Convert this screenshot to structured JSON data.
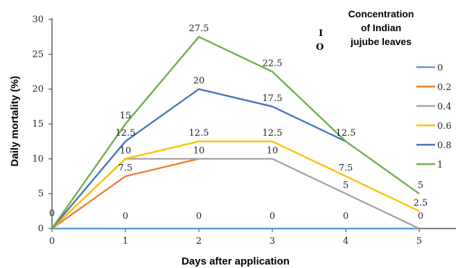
{
  "chart_data": {
    "type": "line",
    "x": [
      0,
      1,
      2,
      3,
      4,
      5
    ],
    "xlabel": "Days after application",
    "ylabel": "Daily mortality (%)",
    "ylim": [
      0,
      30
    ],
    "xlim": [
      0,
      5
    ],
    "yticks": [
      0,
      5,
      10,
      15,
      20,
      25,
      30
    ],
    "grid": false,
    "legend_title_lines": [
      "Concentration",
      "of Indian",
      "jujube leaves"
    ],
    "legend_position": "right",
    "stray_text": [
      "I",
      "O"
    ],
    "series": [
      {
        "name": "0",
        "color": "#5b9bd5",
        "values": [
          0,
          0,
          0,
          0,
          0,
          0
        ],
        "labels": [
          "0",
          "0",
          "0",
          "0",
          "0",
          "0"
        ]
      },
      {
        "name": "0.2",
        "color": "#ed7d31",
        "values": [
          0,
          7.5,
          10,
          null,
          null,
          null
        ],
        "labels": [
          "",
          "7.5",
          "",
          "",
          "",
          ""
        ]
      },
      {
        "name": "0.4",
        "color": "#a5a5a5",
        "values": [
          0,
          10,
          10,
          10,
          5,
          0
        ],
        "labels": [
          "",
          "10",
          "10",
          "10",
          "5",
          ""
        ]
      },
      {
        "name": "0.6",
        "color": "#ffc000",
        "values": [
          0,
          10,
          12.5,
          12.5,
          7.5,
          2.5
        ],
        "labels": [
          "",
          "",
          "12.5",
          "12.5",
          "7.5",
          "2.5"
        ]
      },
      {
        "name": "0.8",
        "color": "#4472c4",
        "values": [
          0,
          12.5,
          20,
          17.5,
          12.5,
          null
        ],
        "labels": [
          "",
          "12.5",
          "20",
          "17.5",
          "12.5",
          ""
        ]
      },
      {
        "name": "1",
        "color": "#70ad47",
        "values": [
          0,
          15,
          27.5,
          22.5,
          12.5,
          5
        ],
        "labels": [
          "",
          "15",
          "27.5",
          "22.5",
          "",
          "5"
        ]
      }
    ]
  }
}
